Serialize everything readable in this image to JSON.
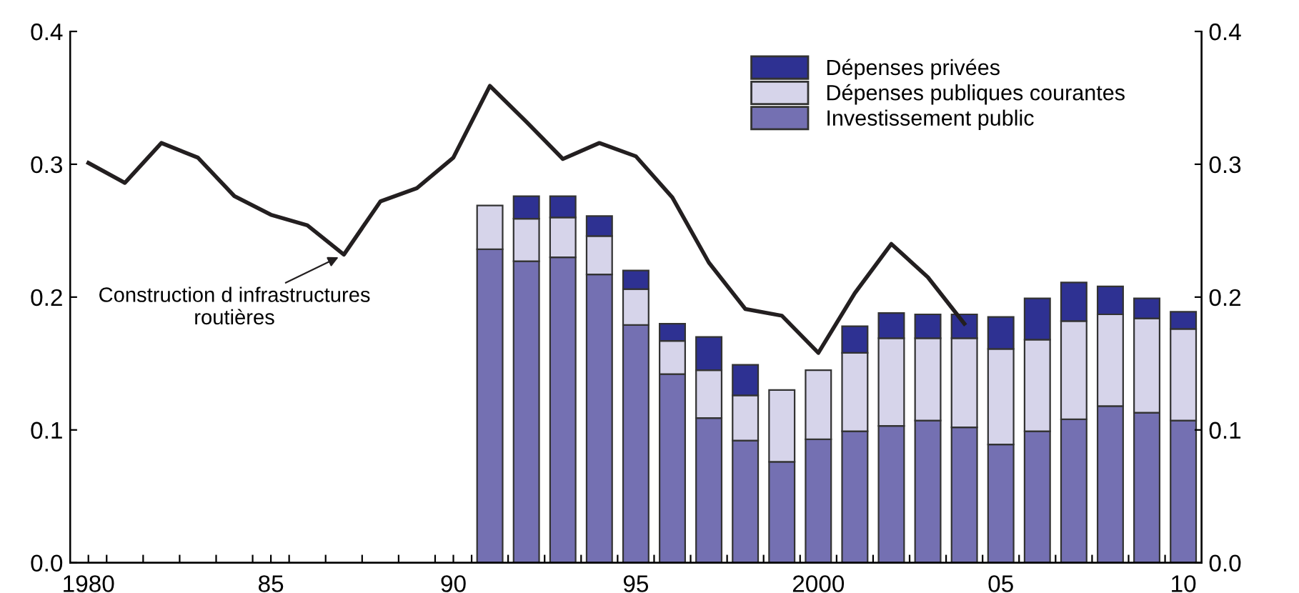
{
  "chart_data": {
    "type": "bar",
    "stacked": true,
    "x": [
      1980,
      1981,
      1982,
      1983,
      1984,
      1985,
      1986,
      1987,
      1988,
      1989,
      1990,
      1991,
      1992,
      1993,
      1994,
      1995,
      1996,
      1997,
      1998,
      1999,
      2000,
      2001,
      2002,
      2003,
      2004,
      2005,
      2006,
      2007,
      2008,
      2009,
      2010
    ],
    "series": [
      {
        "name": "Investissement public",
        "color": "#7470b2",
        "values": [
          null,
          null,
          null,
          null,
          null,
          null,
          null,
          null,
          null,
          null,
          null,
          0.236,
          0.227,
          0.23,
          0.217,
          0.179,
          0.142,
          0.109,
          0.092,
          0.076,
          0.093,
          0.099,
          0.103,
          0.107,
          0.102,
          0.089,
          0.099,
          0.108,
          0.118,
          0.113,
          0.107
        ]
      },
      {
        "name": "Dépenses publiques courantes",
        "color": "#d6d4ea",
        "values": [
          null,
          null,
          null,
          null,
          null,
          null,
          null,
          null,
          null,
          null,
          null,
          0.033,
          0.032,
          0.03,
          0.029,
          0.027,
          0.025,
          0.036,
          0.034,
          0.054,
          0.052,
          0.059,
          0.066,
          0.062,
          0.067,
          0.072,
          0.069,
          0.074,
          0.069,
          0.071,
          0.069
        ]
      },
      {
        "name": "Dépenses privées",
        "color": "#2e3192",
        "values": [
          null,
          null,
          null,
          null,
          null,
          null,
          null,
          null,
          null,
          null,
          null,
          null,
          0.017,
          0.016,
          0.015,
          0.014,
          0.013,
          0.025,
          0.023,
          null,
          null,
          0.02,
          0.019,
          0.018,
          0.018,
          0.024,
          0.031,
          0.029,
          0.021,
          0.015,
          0.013
        ]
      },
      {
        "type": "line",
        "color": "#231f20",
        "values": [
          0.301,
          0.286,
          0.316,
          0.305,
          0.276,
          0.262,
          0.254,
          0.232,
          0.272,
          0.282,
          0.305,
          0.359,
          0.332,
          0.304,
          0.316,
          0.306,
          0.275,
          0.226,
          0.191,
          0.186,
          0.158,
          0.203,
          0.24,
          0.215,
          0.18,
          null,
          null,
          null,
          null,
          null,
          null
        ]
      }
    ],
    "xlim": [
      1979.5,
      2010.5
    ],
    "xticks": [
      {
        "value": 1980,
        "label": "1980"
      },
      {
        "value": 1985,
        "label": "85"
      },
      {
        "value": 1990,
        "label": "90"
      },
      {
        "value": 1995,
        "label": "95"
      },
      {
        "value": 2000,
        "label": "2000"
      },
      {
        "value": 2005,
        "label": "05"
      },
      {
        "value": 2010,
        "label": "10"
      },
      {
        "value": 1980.5,
        "label": null
      },
      {
        "value": 1981.5,
        "label": null
      },
      {
        "value": 1982.5,
        "label": null
      },
      {
        "value": 1983.5,
        "label": null
      },
      {
        "value": 1984.5,
        "label": null
      },
      {
        "value": 1985.5,
        "label": null
      },
      {
        "value": 1986.5,
        "label": null
      },
      {
        "value": 1987.5,
        "label": null
      },
      {
        "value": 1988.5,
        "label": null
      },
      {
        "value": 1989.5,
        "label": null
      },
      {
        "value": 1990.5,
        "label": null
      },
      {
        "value": 1991.5,
        "label": null
      },
      {
        "value": 1992.5,
        "label": null
      },
      {
        "value": 1993.5,
        "label": null
      },
      {
        "value": 1994.5,
        "label": null
      },
      {
        "value": 1995.5,
        "label": null
      },
      {
        "value": 1996.5,
        "label": null
      },
      {
        "value": 1997.5,
        "label": null
      },
      {
        "value": 1998.5,
        "label": null
      },
      {
        "value": 1999.5,
        "label": null
      },
      {
        "value": 2000.5,
        "label": null
      },
      {
        "value": 2001.5,
        "label": null
      },
      {
        "value": 2002.5,
        "label": null
      },
      {
        "value": 2003.5,
        "label": null
      },
      {
        "value": 2004.5,
        "label": null
      },
      {
        "value": 2005.5,
        "label": null
      },
      {
        "value": 2006.5,
        "label": null
      },
      {
        "value": 2007.5,
        "label": null
      },
      {
        "value": 2008.5,
        "label": null
      },
      {
        "value": 2009.5,
        "label": null
      }
    ],
    "ylim": [
      0,
      0.4
    ],
    "yticks": [
      {
        "value": 0,
        "label": "0.0"
      },
      0.1,
      0.2,
      0.3,
      0.4
    ],
    "y2lim": [
      0,
      0.4
    ],
    "y2ticks": [
      {
        "value": 0,
        "label": "0.0"
      },
      0.1,
      0.2,
      0.3,
      0.4
    ],
    "annotations": [
      {
        "text": "Construction d infrastructures\nroutières",
        "x": 1987,
        "y": 0.232
      }
    ],
    "legend": "top right",
    "grid": false
  }
}
